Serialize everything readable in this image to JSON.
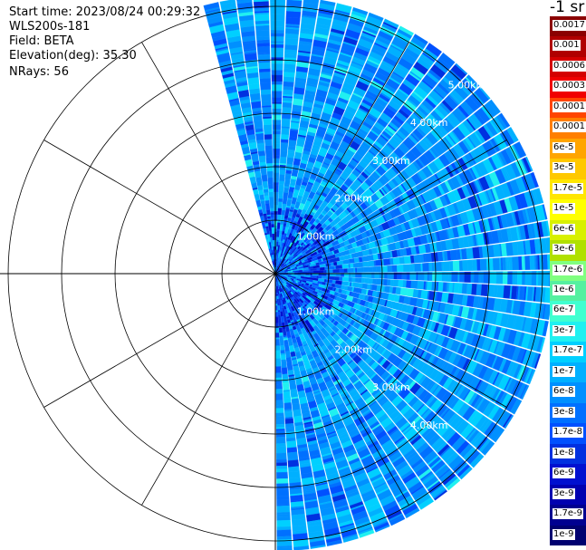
{
  "header": {
    "start_time": "Start time: 2023/08/24 00:29:32",
    "instrument": "WLS200s-181",
    "field": "Field: BETA",
    "elevation": "Elevation(deg): 35.30",
    "nrays": "NRays: 56"
  },
  "colorbar": {
    "title": "-1 sr",
    "labels": [
      "0.0017",
      "0.001",
      "0.0006",
      "0.0003",
      "0.00017",
      "0.0001",
      "6e-5",
      "3e-5",
      "1.7e-5",
      "1e-5",
      "6e-6",
      "3e-6",
      "1.7e-6",
      "1e-6",
      "6e-7",
      "3e-7",
      "1.7e-7",
      "1e-7",
      "6e-8",
      "3e-8",
      "1.7e-8",
      "1e-8",
      "6e-9",
      "3e-9",
      "1.7e-9",
      "1e-9"
    ],
    "colors": [
      "#8b0000",
      "#b00000",
      "#d40000",
      "#f00000",
      "#ff4500",
      "#ff7f00",
      "#ffa500",
      "#ffc800",
      "#ffe600",
      "#ffff00",
      "#d8f000",
      "#b0e000",
      "#80ff80",
      "#55f0a0",
      "#40ffd0",
      "#20f0f0",
      "#00d0ff",
      "#00b0ff",
      "#0090ff",
      "#0070ff",
      "#0050ff",
      "#0030e0",
      "#0010d0",
      "#0000b0",
      "#000090",
      "#000070"
    ]
  },
  "chart_data": {
    "type": "heatmap",
    "title": "",
    "projection": "polar PPI scan",
    "sector_degrees": [
      -15,
      180
    ],
    "range_rings_km": [
      1,
      2,
      3,
      4,
      5
    ],
    "range_labels": [
      "1.00km",
      "2.00km",
      "3.00km",
      "4.00km",
      "5.00km"
    ],
    "max_range_km": 5.2,
    "nrays": 56,
    "colormap_range": [
      1e-09,
      0.0017
    ],
    "dominant_values": [
      "1e-7",
      "6e-8",
      "3e-8"
    ],
    "grid": true
  }
}
